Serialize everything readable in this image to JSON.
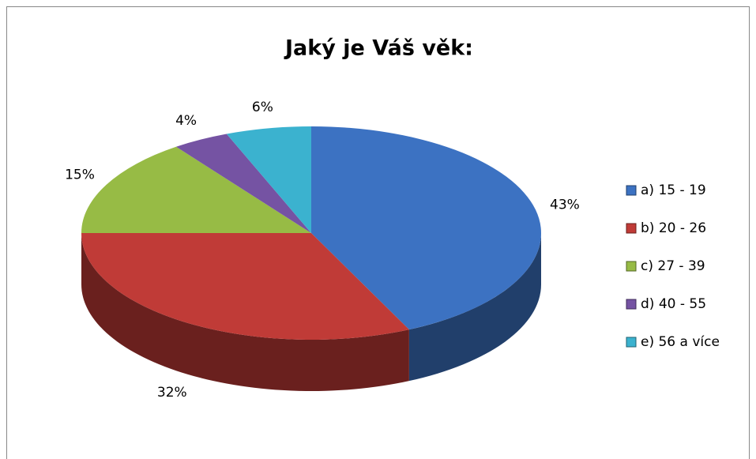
{
  "chart_data": {
    "type": "pie3d",
    "title": "Jaký je Váš věk:",
    "categories": [
      "a) 15 - 19",
      "b) 20 - 26",
      "c) 27 - 39",
      "d) 40 - 55",
      "e) 56 a více"
    ],
    "values": [
      43,
      32,
      15,
      4,
      6
    ],
    "value_labels": [
      "43%",
      "32%",
      "15%",
      "4%",
      "6%"
    ],
    "colors": [
      "#3c72c2",
      "#c03b37",
      "#97bb45",
      "#7553a3",
      "#3bb2cf"
    ],
    "legend": "right"
  }
}
